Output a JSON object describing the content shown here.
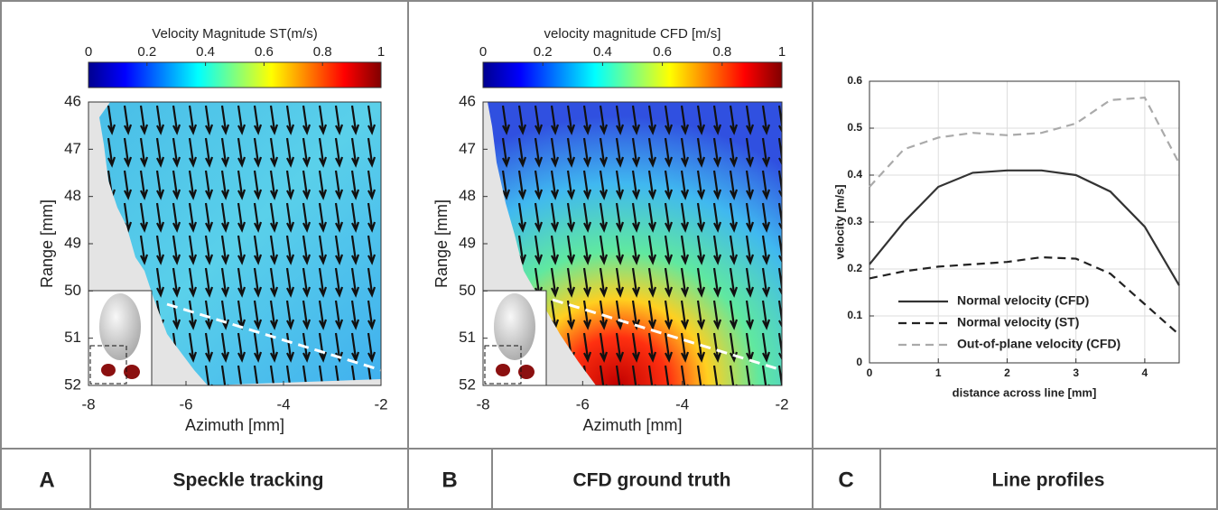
{
  "chart_data": [
    {
      "type": "quiver",
      "title": "Velocity Magnitude ST(m/s)",
      "xlabel": "Azimuth [mm]",
      "ylabel": "Range [mm]",
      "xlim": [
        -8,
        -2
      ],
      "xticks": [
        -8,
        -6,
        -4,
        -2
      ],
      "ylim": [
        52,
        46
      ],
      "yticks": [
        46,
        47,
        48,
        49,
        50,
        51,
        52
      ],
      "colorbar": {
        "lim": [
          0,
          1
        ],
        "ticks": [
          0,
          0.2,
          0.4,
          0.6,
          0.8,
          1
        ],
        "colormap": "jet"
      },
      "panel_label": "A",
      "caption": "Speckle tracking"
    },
    {
      "type": "quiver",
      "title": "velocity magnitude CFD [m/s]",
      "xlabel": "Azimuth [mm]",
      "ylabel": "Range [mm]",
      "xlim": [
        -8,
        -2
      ],
      "xticks": [
        -8,
        -6,
        -4,
        -2
      ],
      "ylim": [
        52,
        46
      ],
      "yticks": [
        46,
        47,
        48,
        49,
        50,
        51,
        52
      ],
      "colorbar": {
        "lim": [
          0,
          1
        ],
        "ticks": [
          0,
          0.2,
          0.4,
          0.6,
          0.8,
          1
        ],
        "colormap": "jet"
      },
      "panel_label": "B",
      "caption": "CFD ground truth"
    },
    {
      "type": "line",
      "xlabel": "distance across line [mm]",
      "ylabel": "velocity [m/s]",
      "x": [
        0,
        0.5,
        1,
        1.5,
        2,
        2.5,
        3,
        3.5,
        4,
        4.5
      ],
      "xlim": [
        0,
        4.5
      ],
      "xticks": [
        0,
        1,
        2,
        3,
        4
      ],
      "ylim": [
        0,
        0.6
      ],
      "yticks": [
        0,
        0.1,
        0.2,
        0.3,
        0.4,
        0.5,
        0.6
      ],
      "grid": true,
      "series": [
        {
          "name": "Normal velocity (CFD)",
          "color": "#333333",
          "style": "solid",
          "values": [
            0.21,
            0.3,
            0.375,
            0.405,
            0.41,
            0.41,
            0.4,
            0.365,
            0.29,
            0.165
          ]
        },
        {
          "name": "Normal velocity (ST)",
          "color": "#222222",
          "style": "dashed",
          "values": [
            0.18,
            0.195,
            0.205,
            0.21,
            0.215,
            0.225,
            0.222,
            0.19,
            0.125,
            0.06
          ]
        },
        {
          "name": "Out-of-plane velocity (CFD)",
          "color": "#aaaaaa",
          "style": "dashed",
          "values": [
            0.375,
            0.455,
            0.48,
            0.49,
            0.485,
            0.49,
            0.51,
            0.56,
            0.565,
            0.425
          ]
        }
      ],
      "panel_label": "C",
      "caption": "Line profiles"
    }
  ]
}
